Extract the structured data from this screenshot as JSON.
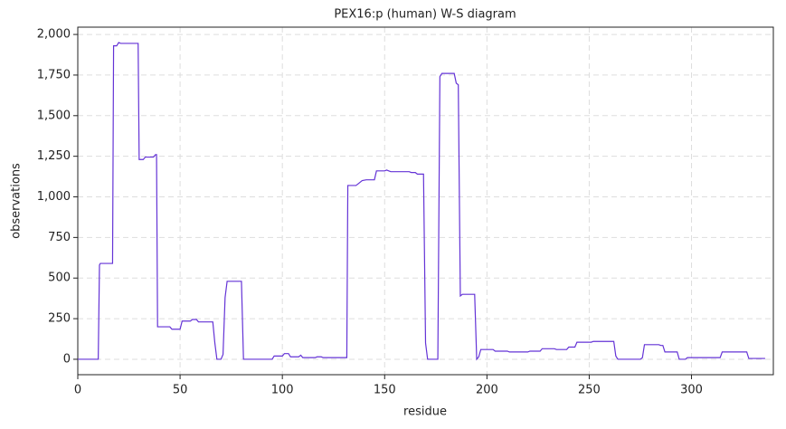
{
  "chart_data": {
    "type": "line",
    "title": "PEX16:p (human) W-S diagram",
    "x_label": "residue",
    "y_label": "observations",
    "x": [
      0,
      10,
      10.6,
      11,
      17,
      17.5,
      19,
      20,
      21,
      29.5,
      30,
      32,
      33,
      37,
      38,
      38.5,
      39,
      45,
      46,
      50,
      51,
      55,
      56,
      58,
      59,
      66,
      67,
      68,
      70,
      71,
      72,
      73,
      80,
      81,
      95,
      96,
      100,
      101,
      103,
      104,
      108,
      109,
      110,
      116,
      117,
      119,
      120,
      131.5,
      132,
      136,
      137,
      139,
      141,
      145,
      146,
      150,
      151,
      152,
      153,
      162,
      163,
      165,
      166,
      169,
      170,
      171,
      176,
      177,
      178,
      184,
      185,
      186,
      187,
      188,
      194,
      195,
      196,
      197,
      203,
      204,
      210,
      211,
      220,
      221,
      226,
      227,
      233,
      234,
      239,
      240,
      243,
      244,
      251,
      252,
      262,
      263,
      264,
      275,
      276,
      277,
      284,
      285,
      286,
      287,
      293,
      294,
      297,
      298,
      314,
      315,
      327,
      328,
      336
    ],
    "series": [
      {
        "name": "observations",
        "color": "#6433d6",
        "values": [
          0,
          0,
          580,
          590,
          590,
          1930,
          1930,
          1950,
          1945,
          1945,
          1230,
          1230,
          1245,
          1245,
          1260,
          1260,
          200,
          200,
          185,
          185,
          235,
          235,
          245,
          245,
          230,
          230,
          100,
          0,
          0,
          30,
          380,
          480,
          480,
          0,
          0,
          20,
          20,
          35,
          35,
          15,
          15,
          25,
          10,
          10,
          15,
          15,
          10,
          10,
          1070,
          1070,
          1080,
          1100,
          1105,
          1105,
          1160,
          1160,
          1165,
          1160,
          1155,
          1155,
          1150,
          1150,
          1140,
          1140,
          100,
          0,
          0,
          1740,
          1760,
          1760,
          1700,
          1690,
          390,
          400,
          400,
          0,
          15,
          60,
          60,
          50,
          50,
          45,
          45,
          50,
          50,
          65,
          65,
          60,
          60,
          75,
          75,
          105,
          105,
          110,
          110,
          20,
          0,
          0,
          10,
          90,
          90,
          85,
          85,
          45,
          45,
          0,
          0,
          10,
          10,
          45,
          45,
          5,
          5
        ]
      }
    ],
    "xlim": [
      0,
      340
    ],
    "ylim": [
      -95,
      2045
    ],
    "xticks": [
      0,
      50,
      100,
      150,
      200,
      250,
      300
    ],
    "yticks": [
      0,
      250,
      500,
      750,
      {
        "value": 1000,
        "label": "1,000"
      },
      {
        "value": 1250,
        "label": "1,250"
      },
      {
        "value": 1500,
        "label": "1,500"
      },
      {
        "value": 1750,
        "label": "1,750"
      },
      {
        "value": 2000,
        "label": "2,000"
      }
    ],
    "grid": true
  }
}
